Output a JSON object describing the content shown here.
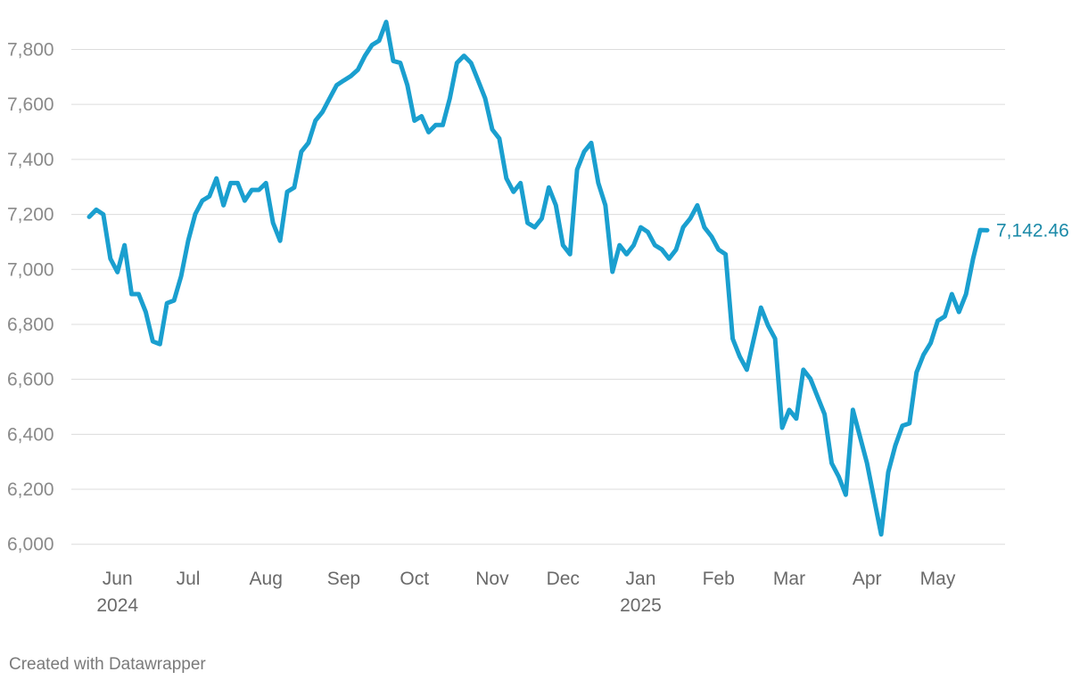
{
  "chart_data": {
    "type": "line",
    "credit": "Created with Datawrapper",
    "categories": [
      null,
      null,
      null,
      null,
      "Jun 2024",
      null,
      null,
      null,
      null,
      null,
      null,
      null,
      null,
      null,
      "Jul",
      null,
      null,
      null,
      null,
      null,
      null,
      null,
      null,
      null,
      null,
      "Aug",
      null,
      null,
      null,
      null,
      null,
      null,
      null,
      null,
      null,
      null,
      "Sep",
      null,
      null,
      null,
      null,
      null,
      null,
      null,
      null,
      null,
      "Oct",
      null,
      null,
      null,
      null,
      null,
      null,
      null,
      null,
      null,
      null,
      "Nov",
      null,
      null,
      null,
      null,
      null,
      null,
      null,
      null,
      null,
      "Dec",
      null,
      null,
      null,
      null,
      null,
      null,
      null,
      null,
      null,
      null,
      "Jan 2025",
      null,
      null,
      null,
      null,
      null,
      null,
      null,
      null,
      null,
      null,
      "Feb",
      null,
      null,
      null,
      null,
      null,
      null,
      null,
      null,
      null,
      "Mar",
      null,
      null,
      null,
      null,
      null,
      null,
      null,
      null,
      null,
      null,
      "Apr",
      null,
      null,
      null,
      null,
      null,
      null,
      null,
      null,
      null,
      "May",
      null,
      null,
      null,
      null,
      null,
      null,
      null
    ],
    "series": [
      {
        "name": null,
        "color": "#1a9fcf",
        "values": [
          7191,
          7217,
          7200,
          7039,
          6990,
          7088,
          6910,
          6910,
          6845,
          6738,
          6728,
          6877,
          6887,
          6975,
          7104,
          7201,
          7250,
          7266,
          7331,
          7233,
          7314,
          7314,
          7250,
          7289,
          7289,
          7314,
          7169,
          7104,
          7282,
          7298,
          7428,
          7460,
          7541,
          7573,
          7622,
          7670,
          7687,
          7703,
          7726,
          7777,
          7816,
          7832,
          7900,
          7758,
          7751,
          7670,
          7541,
          7557,
          7499,
          7525,
          7525,
          7622,
          7751,
          7777,
          7751,
          7687,
          7622,
          7509,
          7476,
          7331,
          7282,
          7314,
          7169,
          7153,
          7185,
          7298,
          7233,
          7088,
          7055,
          7363,
          7428,
          7460,
          7314,
          7233,
          6991,
          7088,
          7055,
          7088,
          7153,
          7136,
          7088,
          7072,
          7039,
          7072,
          7153,
          7185,
          7233,
          7153,
          7120,
          7072,
          7055,
          6748,
          6683,
          6635,
          6748,
          6861,
          6796,
          6748,
          6424,
          6489,
          6457,
          6635,
          6602,
          6537,
          6473,
          6295,
          6246,
          6180,
          6489,
          6392,
          6295,
          6165,
          6036,
          6262,
          6359,
          6431,
          6440,
          6625,
          6690,
          6732,
          6813,
          6829,
          6910,
          6845,
          6910,
          7039,
          7143,
          7142.46
        ],
        "value_labels": [
          null,
          null,
          null,
          null,
          null,
          null,
          null,
          null,
          null,
          null,
          null,
          null,
          null,
          null,
          null,
          null,
          null,
          null,
          null,
          null,
          null,
          null,
          null,
          null,
          null,
          null,
          null,
          null,
          null,
          null,
          null,
          null,
          null,
          null,
          null,
          null,
          null,
          null,
          null,
          null,
          null,
          null,
          null,
          null,
          null,
          null,
          null,
          null,
          null,
          null,
          null,
          null,
          null,
          null,
          null,
          null,
          null,
          null,
          null,
          null,
          null,
          null,
          null,
          null,
          null,
          null,
          null,
          null,
          null,
          null,
          null,
          null,
          null,
          null,
          null,
          null,
          null,
          null,
          null,
          null,
          null,
          null,
          null,
          null,
          null,
          null,
          null,
          null,
          null,
          null,
          null,
          null,
          null,
          null,
          null,
          null,
          null,
          null,
          null,
          null,
          null,
          null,
          null,
          null,
          null,
          null,
          null,
          null,
          null,
          null,
          null,
          null,
          null,
          null,
          null,
          null,
          null,
          null,
          null,
          null,
          null,
          null,
          null,
          null,
          null,
          null,
          null,
          "7,142.46"
        ]
      }
    ],
    "ylim": [
      5970,
      7915
    ],
    "yticks": [
      {
        "value": 6000,
        "label": "6,000"
      },
      {
        "value": 6200,
        "label": "6,200"
      },
      {
        "value": 6400,
        "label": "6,400"
      },
      {
        "value": 6600,
        "label": "6,600"
      },
      {
        "value": 6800,
        "label": "6,800"
      },
      {
        "value": 7000,
        "label": "7,000"
      },
      {
        "value": 7200,
        "label": "7,200"
      },
      {
        "value": 7400,
        "label": "7,400"
      },
      {
        "value": 7600,
        "label": "7,600"
      },
      {
        "value": 7800,
        "label": "7,800"
      }
    ],
    "grid": true
  }
}
